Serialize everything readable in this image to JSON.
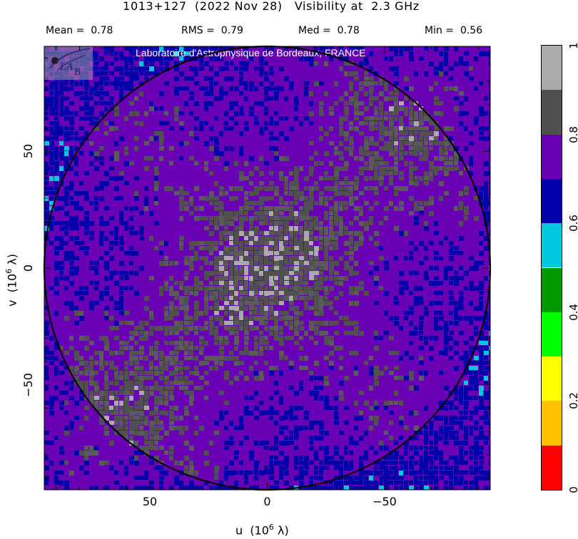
{
  "header": {
    "source": "1013+127",
    "date": "(2022 Nov 28)",
    "quantity": "Visibility at",
    "frequency": "2.3 GHz"
  },
  "stats": {
    "mean_label": "Mean =",
    "mean_value": "0.78",
    "rms_label": "RMS =",
    "rms_value": "0.79",
    "med_label": "Med =",
    "med_value": "0.78",
    "min_label": "Min =",
    "min_value": "0.56"
  },
  "credit": "Laboratoire d'Astrophysique de Bordeaux, FRANCE",
  "logo_text": {
    "l": "L",
    "a": "A",
    "b": "B"
  },
  "chart_data": {
    "type": "heatmap",
    "title": "1013+127 (2022 Nov 28) Visibility at 2.3 GHz",
    "xlabel": "u (10^6 λ)",
    "ylabel": "v (10^6 λ)",
    "x_ticks": [
      "50",
      "0",
      "−50"
    ],
    "x_tick_values": [
      50,
      0,
      -50
    ],
    "y_ticks": [
      "50",
      "0",
      "−50"
    ],
    "y_tick_values": [
      50,
      0,
      -50
    ],
    "xlim": [
      95,
      -95
    ],
    "ylim": [
      -95,
      95
    ],
    "circle_radius": 95,
    "colorbar": {
      "ticks": [
        "0",
        "0.2",
        "0.4",
        "0.6",
        "0.8",
        "1"
      ],
      "tick_values": [
        0,
        0.2,
        0.4,
        0.6,
        0.8,
        1
      ],
      "bins": [
        {
          "from": 0.0,
          "to": 0.1,
          "color": "#ff0000"
        },
        {
          "from": 0.1,
          "to": 0.2,
          "color": "#ffc000"
        },
        {
          "from": 0.2,
          "to": 0.3,
          "color": "#ffff00"
        },
        {
          "from": 0.3,
          "to": 0.4,
          "color": "#00ff00"
        },
        {
          "from": 0.4,
          "to": 0.5,
          "color": "#009900"
        },
        {
          "from": 0.5,
          "to": 0.6,
          "color": "#00c8dc"
        },
        {
          "from": 0.6,
          "to": 0.7,
          "color": "#0000aa"
        },
        {
          "from": 0.7,
          "to": 0.8,
          "color": "#6a00b4"
        },
        {
          "from": 0.8,
          "to": 0.9,
          "color": "#505050"
        },
        {
          "from": 0.9,
          "to": 1.0,
          "color": "#aaaaaa"
        }
      ]
    },
    "stats": {
      "mean": 0.78,
      "rms": 0.79,
      "median": 0.78,
      "min": 0.56
    }
  }
}
